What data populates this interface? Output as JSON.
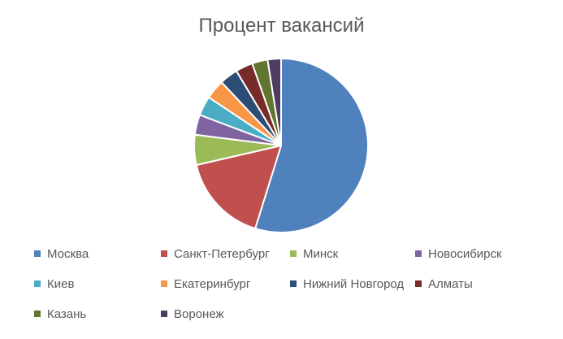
{
  "chart_data": {
    "type": "pie",
    "title": "Процент вакансий",
    "categories": [
      "Москва",
      "Санкт-Петербург",
      "Минск",
      "Новосибирск",
      "Киев",
      "Екатеринбург",
      "Нижний Новгород",
      "Алматы",
      "Казань",
      "Воронеж"
    ],
    "values": [
      52.9,
      16.0,
      5.4,
      3.6,
      3.5,
      3.5,
      3.3,
      3.1,
      2.8,
      2.4
    ],
    "colors": [
      "#4F81BD",
      "#C0504D",
      "#9BBB59",
      "#8064A2",
      "#4BACC6",
      "#F79646",
      "#2C4D75",
      "#772C2A",
      "#5F7530",
      "#4D3B62"
    ],
    "start_angle_deg": 0,
    "direction": "clockwise",
    "legend_position": "bottom"
  }
}
